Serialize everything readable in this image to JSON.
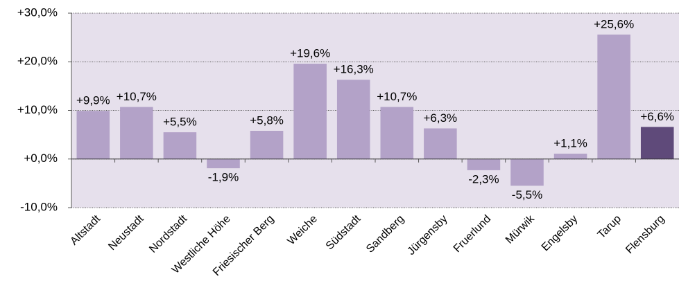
{
  "chart_data": {
    "type": "bar",
    "categories": [
      "Altstadt",
      "Neustadt",
      "Nordstadt",
      "Westliche Höhe",
      "Friesischer Berg",
      "Weiche",
      "Südstadt",
      "Sandberg",
      "Jürgensby",
      "Fruerlund",
      "Mürwik",
      "Engelsby",
      "Tarup",
      "Flensburg"
    ],
    "values": [
      9.9,
      10.7,
      5.5,
      -1.9,
      5.8,
      19.6,
      16.3,
      10.7,
      6.3,
      -2.3,
      -5.5,
      1.1,
      25.6,
      6.6
    ],
    "value_labels": [
      "+9,9%",
      "+10,7%",
      "+5,5%",
      "-1,9%",
      "+5,8%",
      "+19,6%",
      "+16,3%",
      "+10,7%",
      "+6,3%",
      "-2,3%",
      "-5,5%",
      "+1,1%",
      "+25,6%",
      "+6,6%"
    ],
    "colors": [
      "#b3a2c8",
      "#b3a2c8",
      "#b3a2c8",
      "#b3a2c8",
      "#b3a2c8",
      "#b3a2c8",
      "#b3a2c8",
      "#b3a2c8",
      "#b3a2c8",
      "#b3a2c8",
      "#b3a2c8",
      "#b3a2c8",
      "#b3a2c8",
      "#5f4a7a"
    ],
    "plot_background": "#e6e0ec",
    "ylim": [
      -10,
      30
    ],
    "yticks": [
      {
        "value": -10,
        "label": "-10,0%"
      },
      {
        "value": 0,
        "label": "+0,0%"
      },
      {
        "value": 10,
        "label": "+10,0%"
      },
      {
        "value": 20,
        "label": "+20,0%"
      },
      {
        "value": 30,
        "label": "+30,0%"
      }
    ],
    "grid": true
  }
}
